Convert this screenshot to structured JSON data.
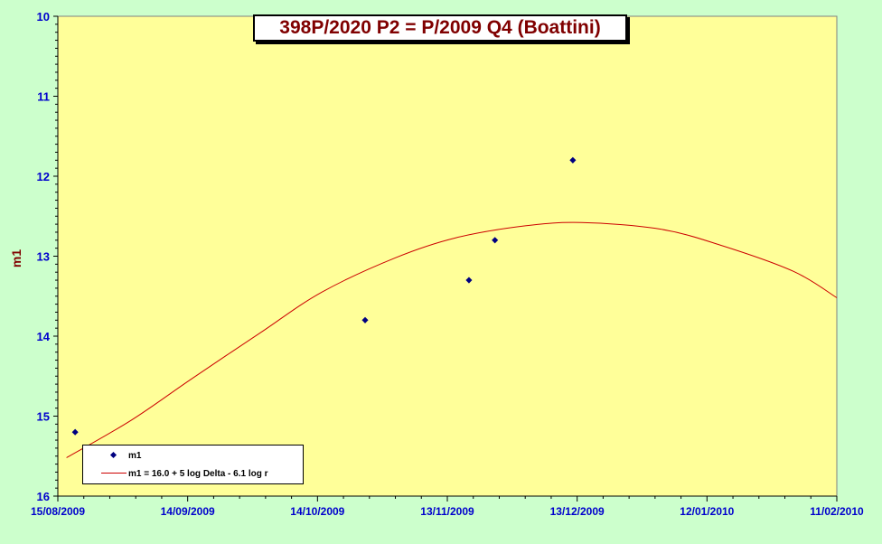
{
  "chart_data": {
    "type": "scatter",
    "title": "398P/2020 P2 = P/2009 Q4 (Boattini)",
    "xlabel": "",
    "ylabel": "m1",
    "x_tick_labels": [
      "15/08/2009",
      "14/09/2009",
      "14/10/2009",
      "13/11/2009",
      "13/12/2009",
      "12/01/2010",
      "11/02/2010"
    ],
    "xlim": [
      "2009-08-15",
      "2010-02-11"
    ],
    "ylim": [
      10,
      16
    ],
    "y_inverted": true,
    "y_ticks": [
      10,
      11,
      12,
      13,
      14,
      15,
      16
    ],
    "grid": false,
    "legend_position": "bottom-left",
    "colors": {
      "plot_background": "#ffff99",
      "page_background": "#ccffcc",
      "points": "#000080",
      "curve": "#cc0000",
      "axis_labels": "#0000cc",
      "title": "#800000"
    },
    "series": [
      {
        "name": "m1",
        "kind": "points",
        "points": [
          {
            "date": "2009-08-19",
            "m1": 15.2
          },
          {
            "date": "2009-10-25",
            "m1": 13.8
          },
          {
            "date": "2009-11-18",
            "m1": 13.3
          },
          {
            "date": "2009-11-24",
            "m1": 12.8
          },
          {
            "date": "2009-12-12",
            "m1": 11.8
          }
        ]
      },
      {
        "name": "m1 = 16.0 + 5 log Delta - 6.1 log r",
        "kind": "line",
        "points": [
          {
            "date": "2009-08-17",
            "m1": 15.52
          },
          {
            "date": "2009-09-01",
            "m1": 15.05
          },
          {
            "date": "2009-09-15",
            "m1": 14.53
          },
          {
            "date": "2009-10-01",
            "m1": 13.95
          },
          {
            "date": "2009-10-15",
            "m1": 13.45
          },
          {
            "date": "2009-11-01",
            "m1": 13.02
          },
          {
            "date": "2009-11-15",
            "m1": 12.77
          },
          {
            "date": "2009-12-01",
            "m1": 12.62
          },
          {
            "date": "2009-12-14",
            "m1": 12.58
          },
          {
            "date": "2010-01-01",
            "m1": 12.66
          },
          {
            "date": "2010-01-15",
            "m1": 12.86
          },
          {
            "date": "2010-02-01",
            "m1": 13.19
          },
          {
            "date": "2010-02-11",
            "m1": 13.52
          }
        ]
      }
    ]
  }
}
